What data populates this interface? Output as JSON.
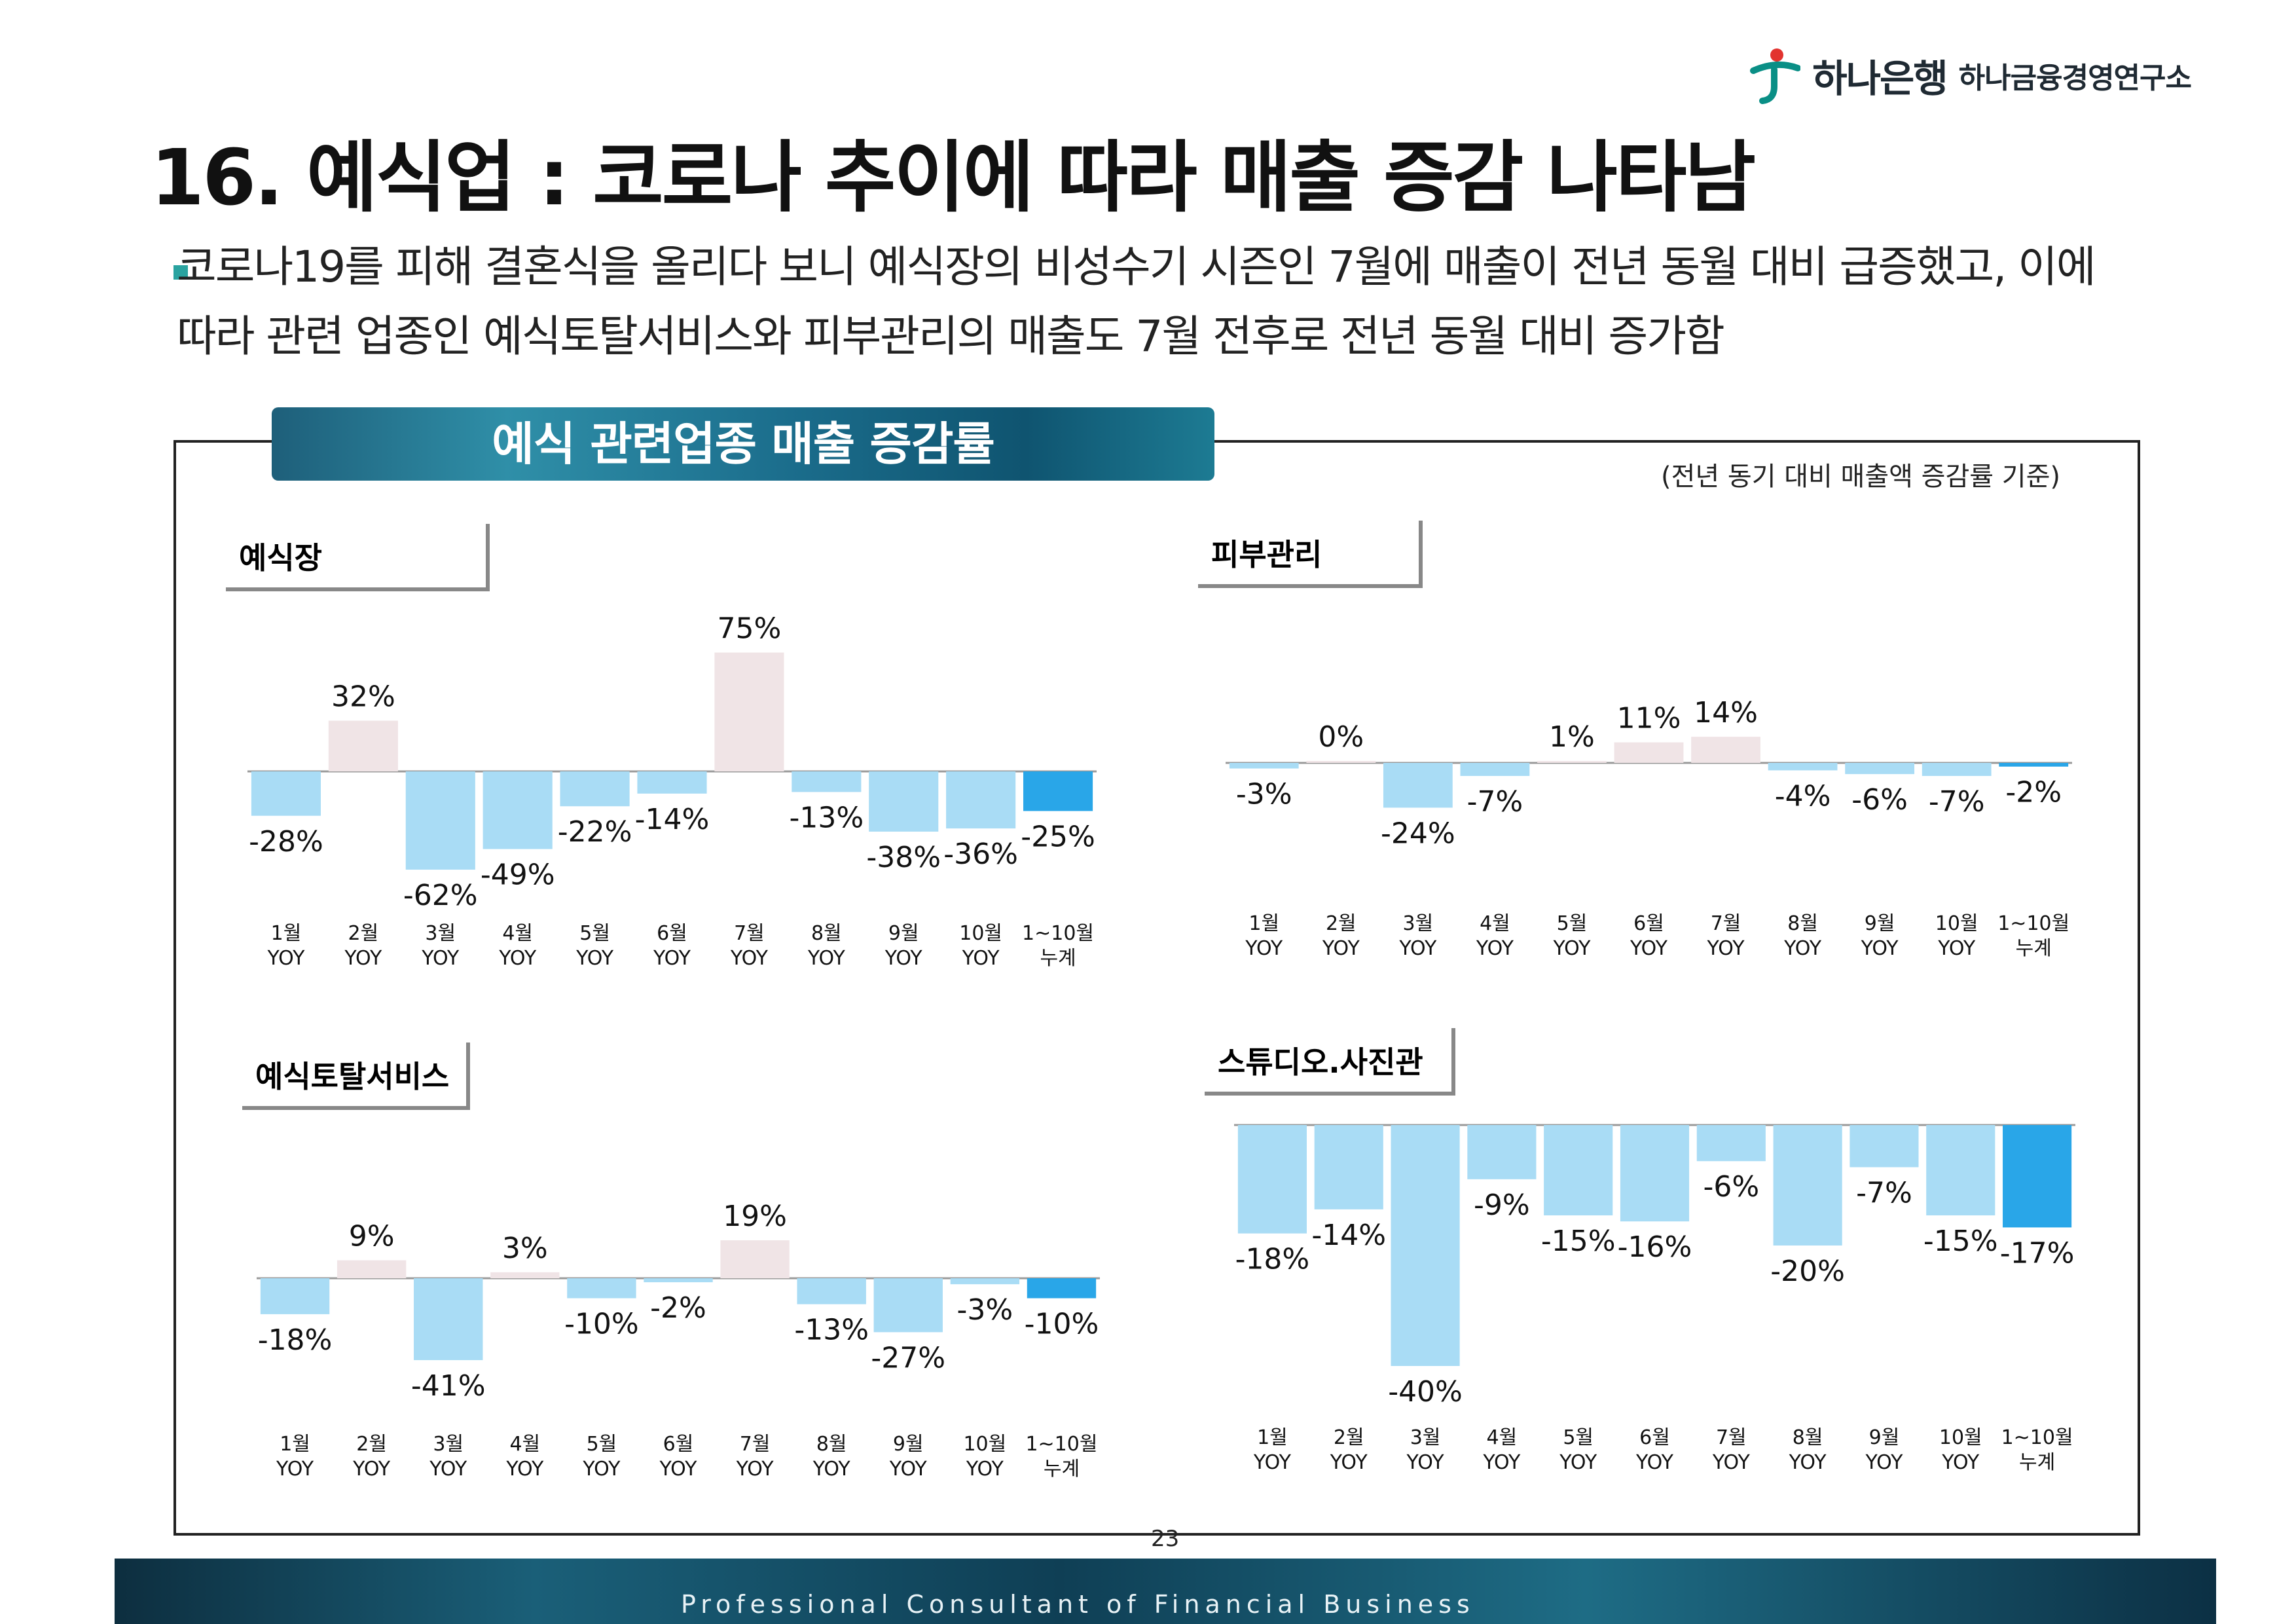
{
  "logo": {
    "bank": "하나은행",
    "institute": "하나금융경영연구소"
  },
  "title": "16. 예식업 : 코로나 추이에 따라 매출 증감 나타남",
  "subtitle": "코로나19를 피해 결혼식을 올리다 보니 예식장의 비성수기 시즌인 7월에 매출이 전년 동월 대비 급증했고, 이에 따라 관련 업종인 예식토탈서비스와 피부관리의 매출도 7월 전후로 전년 동월 대비 증가함",
  "banner": "예식 관련업종 매출 증감률",
  "basis_note": "(전년 동기 대비 매출액 증감률 기준)",
  "page_number": "23",
  "footer": "Professional Consultant of Financial Business",
  "colors": {
    "positive": "#f0e4e6",
    "negative": "#a9dcf5",
    "cumulative": "#29a6e8",
    "axis": "#9a9a9a"
  },
  "chart_data": [
    {
      "type": "bar",
      "title": "예식장",
      "categories": [
        "1월 YOY",
        "2월 YOY",
        "3월 YOY",
        "4월 YOY",
        "5월 YOY",
        "6월 YOY",
        "7월 YOY",
        "8월 YOY",
        "9월 YOY",
        "10월 YOY",
        "1~10월 누계"
      ],
      "values": [
        -28,
        32,
        -62,
        -49,
        -22,
        -14,
        75,
        -13,
        -38,
        -36,
        -25
      ],
      "labels": [
        "-28%",
        "32%",
        "-62%",
        "-49%",
        "-22%",
        "-14%",
        "75%",
        "-13%",
        "-38%",
        "-36%",
        "-25%"
      ],
      "ylabel": "%",
      "ylim": [
        -65,
        80
      ]
    },
    {
      "type": "bar",
      "title": "피부관리",
      "categories": [
        "1월 YOY",
        "2월 YOY",
        "3월 YOY",
        "4월 YOY",
        "5월 YOY",
        "6월 YOY",
        "7월 YOY",
        "8월 YOY",
        "9월 YOY",
        "10월 YOY",
        "1~10월 누계"
      ],
      "values": [
        -3,
        0,
        -24,
        -7,
        1,
        11,
        14,
        -4,
        -6,
        -7,
        -2
      ],
      "labels": [
        "-3%",
        "0%",
        "-24%",
        "-7%",
        "1%",
        "11%",
        "14%",
        "-4%",
        "-6%",
        "-7%",
        "-2%"
      ],
      "ylabel": "%",
      "ylim": [
        -30,
        30
      ]
    },
    {
      "type": "bar",
      "title": "예식토탈서비스",
      "categories": [
        "1월 YOY",
        "2월 YOY",
        "3월 YOY",
        "4월 YOY",
        "5월 YOY",
        "6월 YOY",
        "7월 YOY",
        "8월 YOY",
        "9월 YOY",
        "10월 YOY",
        "1~10월 누계"
      ],
      "values": [
        -18,
        9,
        -41,
        3,
        -10,
        -2,
        19,
        -13,
        -27,
        -3,
        -10
      ],
      "labels": [
        "-18%",
        "9%",
        "-41%",
        "3%",
        "-10%",
        "-2%",
        "19%",
        "-13%",
        "-27%",
        "-3%",
        "-10%"
      ],
      "ylabel": "%",
      "ylim": [
        -45,
        25
      ]
    },
    {
      "type": "bar",
      "title": "스튜디오.사진관",
      "categories": [
        "1월 YOY",
        "2월 YOY",
        "3월 YOY",
        "4월 YOY",
        "5월 YOY",
        "6월 YOY",
        "7월 YOY",
        "8월 YOY",
        "9월 YOY",
        "10월 YOY",
        "1~10월 누계"
      ],
      "values": [
        -18,
        -14,
        -40,
        -9,
        -15,
        -16,
        -6,
        -20,
        -7,
        -15,
        -17
      ],
      "labels": [
        "-18%",
        "-14%",
        "-40%",
        "-9%",
        "-15%",
        "-16%",
        "-6%",
        "-20%",
        "-7%",
        "-15%",
        "-17%"
      ],
      "ylabel": "%",
      "ylim": [
        -42,
        0
      ]
    }
  ]
}
